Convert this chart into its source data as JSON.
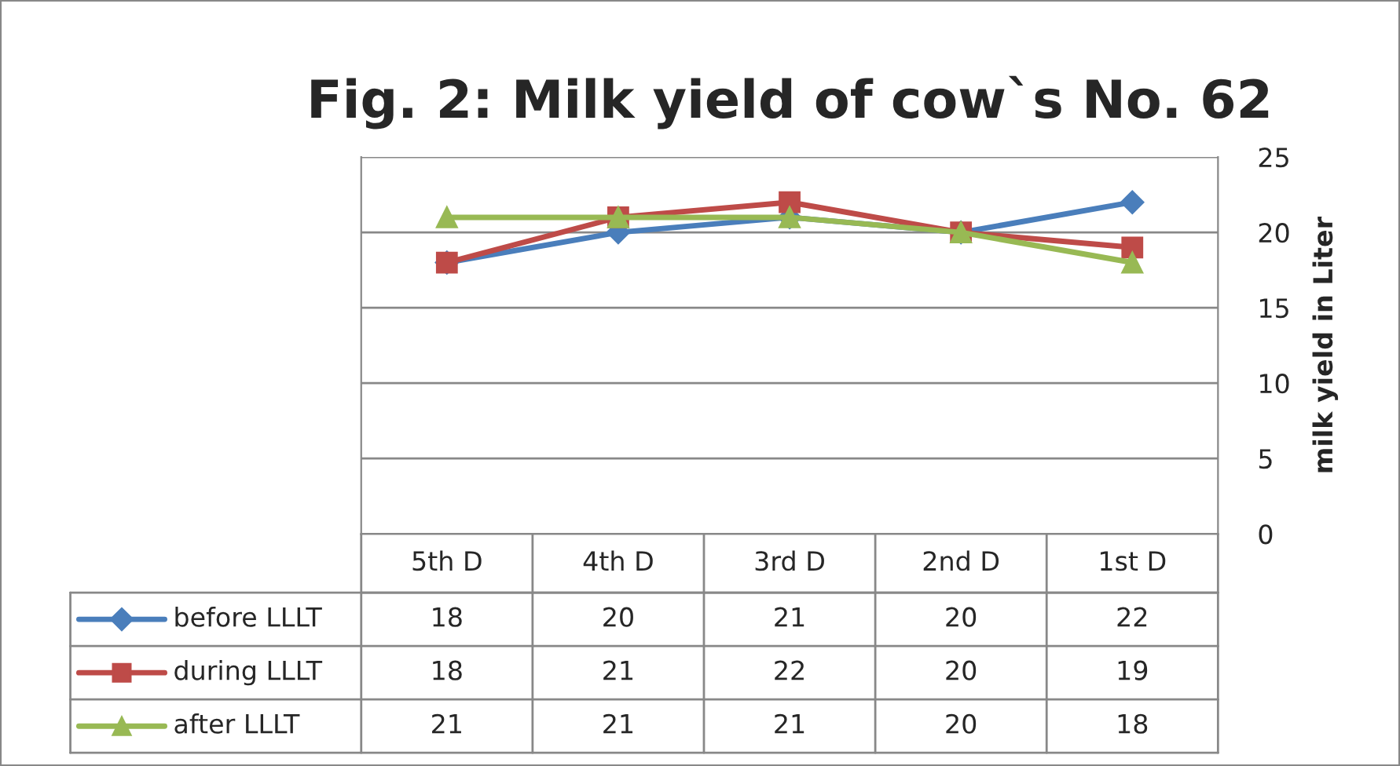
{
  "chart_data": {
    "type": "line",
    "title": "Fig. 2: Milk yield of cow`s No. 62",
    "ylabel": "milk yield in Liter",
    "categories": [
      "5th D",
      "4th D",
      "3rd D",
      "2nd D",
      "1st D"
    ],
    "series": [
      {
        "name": "before LLLT",
        "color": "#4a7ebb",
        "marker": "diamond",
        "values": [
          18,
          20,
          21,
          20,
          22
        ]
      },
      {
        "name": "during LLLT",
        "color": "#be4b48",
        "marker": "square",
        "values": [
          18,
          21,
          22,
          20,
          19
        ]
      },
      {
        "name": "after LLLT",
        "color": "#98b954",
        "marker": "triangle",
        "values": [
          21,
          21,
          21,
          20,
          18
        ]
      }
    ],
    "ylim": [
      0,
      25
    ],
    "yticks": [
      0,
      5,
      10,
      15,
      20,
      25
    ],
    "grid": "y",
    "data_labels": true,
    "legend": "bottom left"
  }
}
